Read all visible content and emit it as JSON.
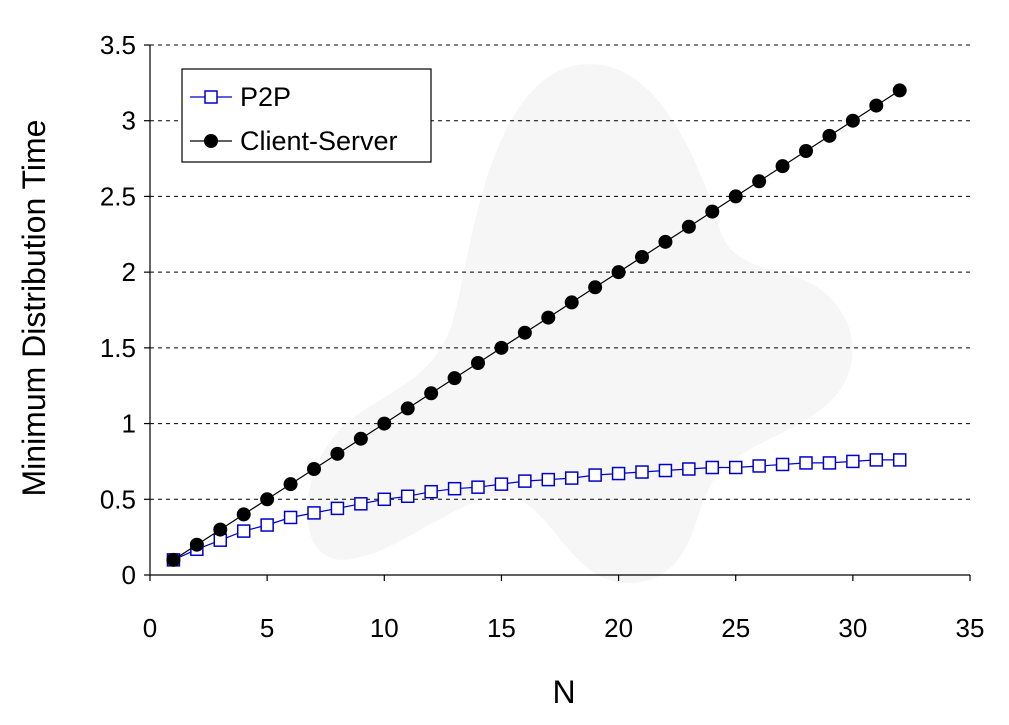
{
  "chart_data": {
    "type": "line",
    "title": "",
    "xlabel": "N",
    "ylabel": "Minimum Distribution Time",
    "xlim": [
      0,
      35
    ],
    "ylim": [
      0,
      3.5
    ],
    "xticks": [
      "0",
      "5",
      "10",
      "15",
      "20",
      "25",
      "30",
      "35"
    ],
    "yticks": [
      "0",
      "0.5",
      "1",
      "1.5",
      "2",
      "2.5",
      "3",
      "3.5"
    ],
    "grid": "horizontal dashed",
    "legend_position": "top-left",
    "x": [
      1,
      2,
      3,
      4,
      5,
      6,
      7,
      8,
      9,
      10,
      11,
      12,
      13,
      14,
      15,
      16,
      17,
      18,
      19,
      20,
      21,
      22,
      23,
      24,
      25,
      26,
      27,
      28,
      29,
      30,
      31,
      32
    ],
    "series": [
      {
        "name": "P2P",
        "color": "#0000cc",
        "marker": "open-square",
        "values": [
          0.1,
          0.17,
          0.23,
          0.29,
          0.33,
          0.38,
          0.41,
          0.44,
          0.47,
          0.5,
          0.52,
          0.55,
          0.57,
          0.58,
          0.6,
          0.62,
          0.63,
          0.64,
          0.66,
          0.67,
          0.68,
          0.69,
          0.7,
          0.71,
          0.71,
          0.72,
          0.73,
          0.74,
          0.74,
          0.75,
          0.76,
          0.76
        ]
      },
      {
        "name": "Client-Server",
        "color": "#000000",
        "marker": "filled-circle",
        "values": [
          0.1,
          0.2,
          0.3,
          0.4,
          0.5,
          0.6,
          0.7,
          0.8,
          0.9,
          1.0,
          1.1,
          1.2,
          1.3,
          1.4,
          1.5,
          1.6,
          1.7,
          1.8,
          1.9,
          2.0,
          2.1,
          2.2,
          2.3,
          2.4,
          2.5,
          2.6,
          2.7,
          2.8,
          2.9,
          3.0,
          3.1,
          3.2
        ]
      }
    ]
  }
}
